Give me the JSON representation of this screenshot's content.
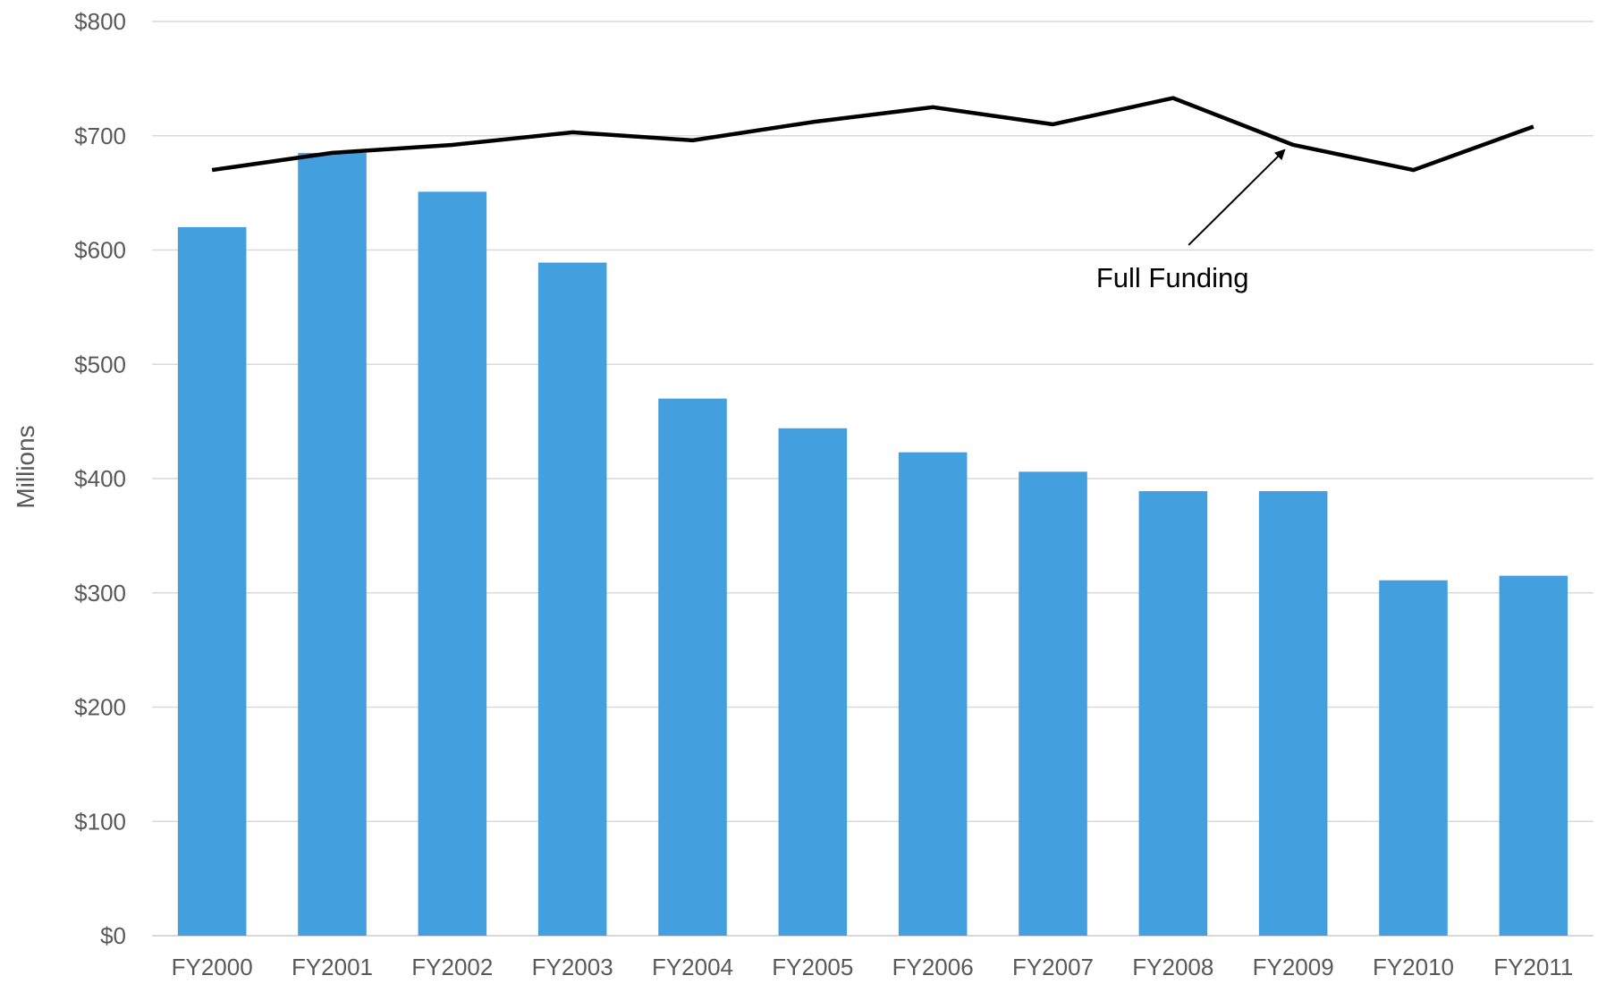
{
  "chart_data": {
    "type": "bar",
    "categories": [
      "FY2000",
      "FY2001",
      "FY2002",
      "FY2003",
      "FY2004",
      "FY2005",
      "FY2006",
      "FY2007",
      "FY2008",
      "FY2009",
      "FY2010",
      "FY2011"
    ],
    "series": [
      {
        "type": "bar",
        "values": [
          620,
          685,
          651,
          589,
          470,
          444,
          423,
          406,
          389,
          389,
          311,
          315
        ],
        "color": "#449fdf"
      },
      {
        "type": "line",
        "name": "Full Funding",
        "values": [
          670,
          685,
          692,
          703,
          696,
          712,
          725,
          710,
          733,
          692,
          670,
          708
        ],
        "color": "#000000"
      }
    ],
    "ylabel": "Millions",
    "ylim": [
      0,
      800
    ],
    "yticks": [
      0,
      100,
      200,
      300,
      400,
      500,
      600,
      700,
      800
    ],
    "ytick_labels": [
      "$0",
      "$100",
      "$200",
      "$300",
      "$400",
      "$500",
      "$600",
      "$700",
      "$800"
    ],
    "annotation": {
      "text": "Full Funding",
      "points_to": "FY2009"
    },
    "grid": true,
    "legend": "none"
  }
}
